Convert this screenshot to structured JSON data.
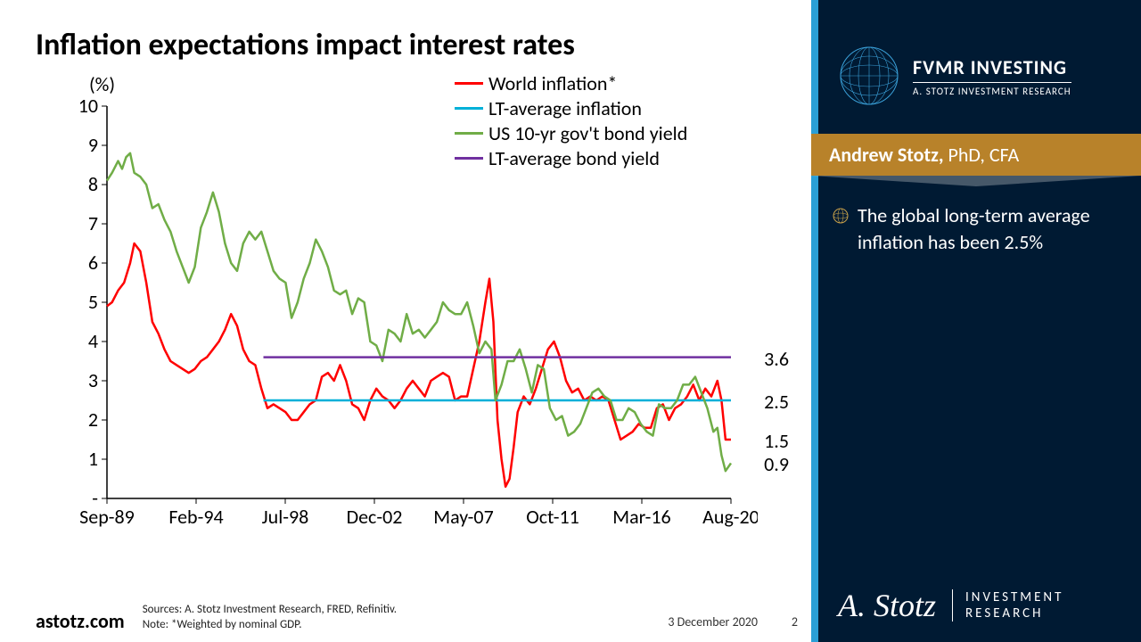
{
  "title": "Inflation expectations impact interest rates",
  "chart": {
    "type": "line",
    "y_unit_label": "(%)",
    "ylim": [
      0,
      10
    ],
    "ytick_step": 1,
    "yticks": [
      "-",
      "1",
      "2",
      "3",
      "4",
      "5",
      "6",
      "7",
      "8",
      "9",
      "10"
    ],
    "xlim": [
      1989.75,
      2020.67
    ],
    "xticks": [
      "Sep-89",
      "Feb-94",
      "Jul-98",
      "Dec-02",
      "May-07",
      "Oct-11",
      "Mar-16",
      "Aug-20"
    ],
    "axis_color": "#000000",
    "tick_fontsize": 22,
    "background_color": "#ffffff",
    "line_width": 2.5,
    "series": [
      {
        "label": "World inflation*",
        "color": "#ff0000",
        "end_value": 1.5,
        "data": [
          [
            1989.75,
            4.9
          ],
          [
            1990.0,
            5.0
          ],
          [
            1990.3,
            5.3
          ],
          [
            1990.6,
            5.5
          ],
          [
            1990.9,
            6.0
          ],
          [
            1991.1,
            6.5
          ],
          [
            1991.4,
            6.3
          ],
          [
            1991.7,
            5.5
          ],
          [
            1992.0,
            4.5
          ],
          [
            1992.3,
            4.2
          ],
          [
            1992.6,
            3.8
          ],
          [
            1992.9,
            3.5
          ],
          [
            1993.2,
            3.4
          ],
          [
            1993.5,
            3.3
          ],
          [
            1993.8,
            3.2
          ],
          [
            1994.1,
            3.3
          ],
          [
            1994.4,
            3.5
          ],
          [
            1994.7,
            3.6
          ],
          [
            1995.0,
            3.8
          ],
          [
            1995.3,
            4.0
          ],
          [
            1995.6,
            4.3
          ],
          [
            1995.9,
            4.7
          ],
          [
            1996.2,
            4.4
          ],
          [
            1996.5,
            3.8
          ],
          [
            1996.8,
            3.5
          ],
          [
            1997.1,
            3.4
          ],
          [
            1997.4,
            2.8
          ],
          [
            1997.7,
            2.3
          ],
          [
            1998.0,
            2.4
          ],
          [
            1998.3,
            2.3
          ],
          [
            1998.6,
            2.2
          ],
          [
            1998.9,
            2.0
          ],
          [
            1999.2,
            2.0
          ],
          [
            1999.5,
            2.2
          ],
          [
            1999.8,
            2.4
          ],
          [
            2000.1,
            2.5
          ],
          [
            2000.4,
            3.1
          ],
          [
            2000.7,
            3.2
          ],
          [
            2001.0,
            3.0
          ],
          [
            2001.3,
            3.4
          ],
          [
            2001.6,
            3.0
          ],
          [
            2001.9,
            2.4
          ],
          [
            2002.2,
            2.3
          ],
          [
            2002.5,
            2.0
          ],
          [
            2002.8,
            2.5
          ],
          [
            2003.1,
            2.8
          ],
          [
            2003.4,
            2.6
          ],
          [
            2003.7,
            2.5
          ],
          [
            2004.0,
            2.3
          ],
          [
            2004.3,
            2.5
          ],
          [
            2004.6,
            2.8
          ],
          [
            2004.9,
            3.0
          ],
          [
            2005.2,
            2.8
          ],
          [
            2005.5,
            2.6
          ],
          [
            2005.8,
            3.0
          ],
          [
            2006.1,
            3.1
          ],
          [
            2006.4,
            3.2
          ],
          [
            2006.7,
            3.1
          ],
          [
            2007.0,
            2.5
          ],
          [
            2007.3,
            2.6
          ],
          [
            2007.6,
            2.6
          ],
          [
            2007.9,
            3.3
          ],
          [
            2008.2,
            4.0
          ],
          [
            2008.5,
            5.0
          ],
          [
            2008.7,
            5.6
          ],
          [
            2008.9,
            4.5
          ],
          [
            2009.1,
            2.0
          ],
          [
            2009.3,
            1.0
          ],
          [
            2009.5,
            0.3
          ],
          [
            2009.7,
            0.5
          ],
          [
            2009.9,
            1.3
          ],
          [
            2010.1,
            2.2
          ],
          [
            2010.4,
            2.6
          ],
          [
            2010.7,
            2.4
          ],
          [
            2011.0,
            2.8
          ],
          [
            2011.3,
            3.3
          ],
          [
            2011.6,
            3.8
          ],
          [
            2011.9,
            4.0
          ],
          [
            2012.2,
            3.6
          ],
          [
            2012.5,
            3.0
          ],
          [
            2012.8,
            2.7
          ],
          [
            2013.1,
            2.8
          ],
          [
            2013.4,
            2.5
          ],
          [
            2013.7,
            2.6
          ],
          [
            2014.0,
            2.5
          ],
          [
            2014.3,
            2.6
          ],
          [
            2014.6,
            2.5
          ],
          [
            2014.9,
            2.0
          ],
          [
            2015.2,
            1.5
          ],
          [
            2015.5,
            1.6
          ],
          [
            2015.8,
            1.7
          ],
          [
            2016.1,
            1.9
          ],
          [
            2016.4,
            1.8
          ],
          [
            2016.7,
            1.8
          ],
          [
            2017.0,
            2.3
          ],
          [
            2017.3,
            2.4
          ],
          [
            2017.6,
            2.0
          ],
          [
            2017.9,
            2.3
          ],
          [
            2018.2,
            2.4
          ],
          [
            2018.5,
            2.6
          ],
          [
            2018.8,
            2.9
          ],
          [
            2019.1,
            2.5
          ],
          [
            2019.4,
            2.8
          ],
          [
            2019.7,
            2.6
          ],
          [
            2020.0,
            3.0
          ],
          [
            2020.2,
            2.5
          ],
          [
            2020.4,
            1.5
          ],
          [
            2020.67,
            1.5
          ]
        ]
      },
      {
        "label": "LT-average inflation",
        "color": "#00b0d8",
        "end_value": 2.5,
        "data": [
          [
            1997.5,
            2.5
          ],
          [
            2020.67,
            2.5
          ]
        ]
      },
      {
        "label": "US 10-yr gov't bond yield",
        "color": "#70ad47",
        "end_value": 0.9,
        "data": [
          [
            1989.75,
            8.1
          ],
          [
            1990.0,
            8.3
          ],
          [
            1990.3,
            8.6
          ],
          [
            1990.5,
            8.4
          ],
          [
            1990.7,
            8.7
          ],
          [
            1990.9,
            8.8
          ],
          [
            1991.1,
            8.3
          ],
          [
            1991.4,
            8.2
          ],
          [
            1991.7,
            8.0
          ],
          [
            1992.0,
            7.4
          ],
          [
            1992.3,
            7.5
          ],
          [
            1992.6,
            7.1
          ],
          [
            1992.9,
            6.8
          ],
          [
            1993.2,
            6.3
          ],
          [
            1993.5,
            5.9
          ],
          [
            1993.8,
            5.5
          ],
          [
            1994.1,
            5.9
          ],
          [
            1994.4,
            6.9
          ],
          [
            1994.7,
            7.3
          ],
          [
            1995.0,
            7.8
          ],
          [
            1995.3,
            7.3
          ],
          [
            1995.6,
            6.5
          ],
          [
            1995.9,
            6.0
          ],
          [
            1996.2,
            5.8
          ],
          [
            1996.5,
            6.5
          ],
          [
            1996.8,
            6.8
          ],
          [
            1997.1,
            6.6
          ],
          [
            1997.4,
            6.8
          ],
          [
            1997.7,
            6.3
          ],
          [
            1998.0,
            5.8
          ],
          [
            1998.3,
            5.6
          ],
          [
            1998.6,
            5.5
          ],
          [
            1998.9,
            4.6
          ],
          [
            1999.2,
            5.0
          ],
          [
            1999.5,
            5.6
          ],
          [
            1999.8,
            6.0
          ],
          [
            2000.1,
            6.6
          ],
          [
            2000.4,
            6.3
          ],
          [
            2000.7,
            5.9
          ],
          [
            2001.0,
            5.3
          ],
          [
            2001.3,
            5.2
          ],
          [
            2001.6,
            5.3
          ],
          [
            2001.9,
            4.7
          ],
          [
            2002.2,
            5.1
          ],
          [
            2002.5,
            5.0
          ],
          [
            2002.8,
            4.0
          ],
          [
            2003.1,
            3.9
          ],
          [
            2003.4,
            3.5
          ],
          [
            2003.7,
            4.3
          ],
          [
            2004.0,
            4.2
          ],
          [
            2004.3,
            4.0
          ],
          [
            2004.6,
            4.7
          ],
          [
            2004.9,
            4.2
          ],
          [
            2005.2,
            4.3
          ],
          [
            2005.5,
            4.1
          ],
          [
            2005.8,
            4.3
          ],
          [
            2006.1,
            4.5
          ],
          [
            2006.4,
            5.0
          ],
          [
            2006.7,
            4.8
          ],
          [
            2007.0,
            4.7
          ],
          [
            2007.3,
            4.7
          ],
          [
            2007.6,
            5.0
          ],
          [
            2007.9,
            4.4
          ],
          [
            2008.2,
            3.7
          ],
          [
            2008.5,
            4.0
          ],
          [
            2008.8,
            3.8
          ],
          [
            2009.0,
            2.5
          ],
          [
            2009.3,
            2.9
          ],
          [
            2009.6,
            3.5
          ],
          [
            2009.9,
            3.5
          ],
          [
            2010.2,
            3.8
          ],
          [
            2010.5,
            3.3
          ],
          [
            2010.8,
            2.7
          ],
          [
            2011.1,
            3.4
          ],
          [
            2011.4,
            3.3
          ],
          [
            2011.7,
            2.3
          ],
          [
            2012.0,
            2.0
          ],
          [
            2012.3,
            2.1
          ],
          [
            2012.6,
            1.6
          ],
          [
            2012.9,
            1.7
          ],
          [
            2013.2,
            1.9
          ],
          [
            2013.5,
            2.3
          ],
          [
            2013.8,
            2.7
          ],
          [
            2014.1,
            2.8
          ],
          [
            2014.4,
            2.6
          ],
          [
            2014.7,
            2.5
          ],
          [
            2015.0,
            2.0
          ],
          [
            2015.3,
            2.0
          ],
          [
            2015.6,
            2.3
          ],
          [
            2015.9,
            2.2
          ],
          [
            2016.2,
            1.9
          ],
          [
            2016.5,
            1.7
          ],
          [
            2016.8,
            1.6
          ],
          [
            2017.1,
            2.4
          ],
          [
            2017.4,
            2.3
          ],
          [
            2017.7,
            2.3
          ],
          [
            2018.0,
            2.5
          ],
          [
            2018.3,
            2.9
          ],
          [
            2018.6,
            2.9
          ],
          [
            2018.9,
            3.1
          ],
          [
            2019.2,
            2.7
          ],
          [
            2019.5,
            2.3
          ],
          [
            2019.8,
            1.7
          ],
          [
            2020.0,
            1.8
          ],
          [
            2020.2,
            1.1
          ],
          [
            2020.4,
            0.7
          ],
          [
            2020.67,
            0.9
          ]
        ]
      },
      {
        "label": "LT-average bond yield",
        "color": "#7030a0",
        "end_value": 3.6,
        "data": [
          [
            1997.5,
            3.6
          ],
          [
            2020.67,
            3.6
          ]
        ]
      }
    ]
  },
  "footer": {
    "site": "astotz.com",
    "sources_line1": "Sources: A. Stotz Investment Research, FRED, Refinitiv.",
    "sources_line2": "Note: *Weighted by nominal GDP.",
    "date": "3 December 2020",
    "page": "2"
  },
  "sidebar": {
    "brand_main": "FVMR INVESTING",
    "brand_sub": "A. STOTZ INVESTMENT RESEARCH",
    "author_name": "Andrew Stotz,",
    "author_creds": " PhD, CFA",
    "bullet": "The global long-term average inflation has been 2.5%",
    "sig_name": "A. Stotz",
    "sig_line1": "INVESTMENT",
    "sig_line2": "RESEARCH",
    "bg_color": "#001a33",
    "strip_color": "#2a9fd6",
    "author_bar_color": "#b8822a"
  }
}
